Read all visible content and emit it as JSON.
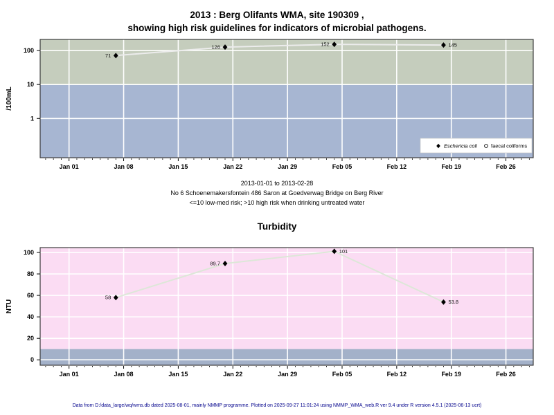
{
  "page": {
    "footer": "Data from D:/data_large/wq/wms.db dated 2025-08-01, mainly NMMP programme. Plotted on 2025-09-27 11:01:24 using NMMP_WMA_web.R ver 9.4 under R version 4.5.1 (2025-06-13 ucrt)"
  },
  "chart_data": [
    {
      "id": "microbial",
      "type": "line",
      "title_lines": [
        "2013 : Berg Olifants WMA, site 190309 ,",
        "showing high risk guidelines for indicators of microbial pathogens."
      ],
      "subtitle_lines": [
        "2013-01-01 to 2013-02-28",
        "No 6 Schoenemakersfontein 486 Saron at Goedverwag Bridge on Berg River",
        "<=10 low-med risk; >10 high risk when drinking untreated water"
      ],
      "ylabel": "/100mL",
      "yscale": "log",
      "ylim": [
        0.07,
        212
      ],
      "yticks": [
        {
          "value": 100,
          "label": "100"
        },
        {
          "value": 10,
          "label": "10"
        },
        {
          "value": 1,
          "label": "1"
        }
      ],
      "xlim_days": [
        -3.7,
        59.5
      ],
      "xticks": [
        {
          "day": 0,
          "label": "Jan 01"
        },
        {
          "day": 7,
          "label": "Jan 08"
        },
        {
          "day": 14,
          "label": "Jan 15"
        },
        {
          "day": 21,
          "label": "Jan 22"
        },
        {
          "day": 28,
          "label": "Jan 29"
        },
        {
          "day": 35,
          "label": "Feb 05"
        },
        {
          "day": 42,
          "label": "Feb 12"
        },
        {
          "day": 49,
          "label": "Feb 19"
        },
        {
          "day": 56,
          "label": "Feb 26"
        }
      ],
      "bands": [
        {
          "from": 10,
          "to": 212,
          "color": "#c5cdbd",
          "meaning": "high risk >10"
        },
        {
          "from": 0.07,
          "to": 10,
          "color": "#a7b6d2",
          "meaning": "low-med risk <=10"
        }
      ],
      "grid_color": "#ffffff",
      "line_color": "#ececec",
      "marker_color": "#000000",
      "series": [
        {
          "name": "Eschericia coli",
          "marker": "filled-diamond",
          "points": [
            {
              "day": 6,
              "value": 71,
              "label": "71",
              "label_side": "left"
            },
            {
              "day": 20,
              "value": 126,
              "label": "126",
              "label_side": "left"
            },
            {
              "day": 34,
              "value": 152,
              "label": "152",
              "label_side": "left"
            },
            {
              "day": 48,
              "value": 145,
              "label": "145",
              "label_side": "right"
            }
          ]
        }
      ],
      "legend": {
        "position": "bottom-right",
        "entries": [
          {
            "symbol": "filled-diamond",
            "label": "Eschericia coli",
            "italic": true
          },
          {
            "symbol": "open-circle",
            "label": "faecal coliforms",
            "italic": false
          }
        ]
      }
    },
    {
      "id": "turbidity",
      "type": "line",
      "title": "Turbidity",
      "ylabel": "NTU",
      "yscale": "linear",
      "ylim": [
        -5,
        104.5
      ],
      "yticks": [
        {
          "value": 100,
          "label": "100"
        },
        {
          "value": 80,
          "label": "80"
        },
        {
          "value": 60,
          "label": "60"
        },
        {
          "value": 40,
          "label": "40"
        },
        {
          "value": 20,
          "label": "20"
        },
        {
          "value": 0,
          "label": "0"
        }
      ],
      "xlim_days": [
        -3.7,
        59.5
      ],
      "xticks": [
        {
          "day": 0,
          "label": "Jan 01"
        },
        {
          "day": 7,
          "label": "Jan 08"
        },
        {
          "day": 14,
          "label": "Jan 15"
        },
        {
          "day": 21,
          "label": "Jan 22"
        },
        {
          "day": 28,
          "label": "Jan 29"
        },
        {
          "day": 35,
          "label": "Feb 05"
        },
        {
          "day": 42,
          "label": "Feb 12"
        },
        {
          "day": 49,
          "label": "Feb 19"
        },
        {
          "day": 56,
          "label": "Feb 26"
        }
      ],
      "bands": [
        {
          "from": 10,
          "to": 104.5,
          "color": "#fbdcf3",
          "meaning": "above 10 NTU"
        },
        {
          "from": -5,
          "to": 10,
          "color": "#a3b1c9",
          "meaning": "below 10 NTU"
        }
      ],
      "grid_color": "#ffffff",
      "line_color": "#dde7d8",
      "marker_color": "#000000",
      "series": [
        {
          "name": "Turbidity",
          "marker": "filled-diamond",
          "points": [
            {
              "day": 6,
              "value": 58,
              "label": "58",
              "label_side": "left"
            },
            {
              "day": 20,
              "value": 89.7,
              "label": "89.7",
              "label_side": "left"
            },
            {
              "day": 34,
              "value": 101,
              "label": "101",
              "label_side": "right"
            },
            {
              "day": 48,
              "value": 53.8,
              "label": "53.8",
              "label_side": "right"
            }
          ]
        }
      ]
    }
  ]
}
